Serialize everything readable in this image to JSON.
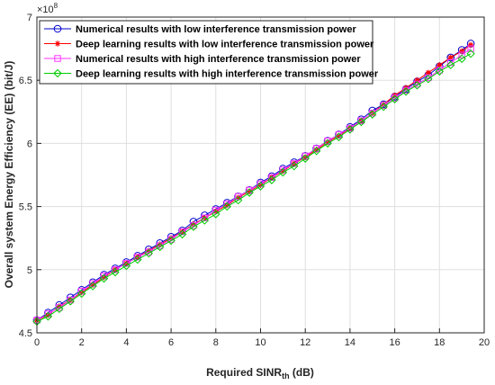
{
  "chart_data": {
    "type": "line",
    "title": "",
    "xlabel_main": "Required SINR",
    "xlabel_sub": "th",
    "xlabel_unit": " (dB)",
    "ylabel": "Overall system Energy Efficiency (EE) (bit/J)",
    "exponent_base": "×10",
    "exponent_power": "8",
    "scale": 100000000,
    "xlim": [
      0,
      20
    ],
    "ylim": [
      4.5,
      7.0
    ],
    "xticks": [
      0,
      2,
      4,
      6,
      8,
      10,
      12,
      14,
      16,
      18,
      20
    ],
    "yticks": [
      4.5,
      5,
      5.5,
      6,
      6.5,
      7
    ],
    "grid": true,
    "legend_position": "top-left",
    "series": [
      {
        "name": "Numerical results with low interference transmission power",
        "color": "#0000cc",
        "marker": "circle",
        "x": [
          0,
          0.5,
          1,
          1.5,
          2,
          2.5,
          3,
          3.5,
          4,
          4.5,
          5,
          5.5,
          6,
          6.5,
          7,
          7.5,
          8,
          8.5,
          9,
          9.5,
          10,
          10.5,
          11,
          11.5,
          12,
          12.5,
          13,
          13.5,
          14,
          14.5,
          15,
          15.5,
          16,
          16.5,
          17,
          17.5,
          18,
          18.5,
          19,
          19.4
        ],
        "values": [
          4.6,
          4.66,
          4.72,
          4.78,
          4.84,
          4.9,
          4.96,
          5.01,
          5.06,
          5.11,
          5.16,
          5.21,
          5.26,
          5.31,
          5.38,
          5.43,
          5.48,
          5.53,
          5.58,
          5.63,
          5.69,
          5.74,
          5.8,
          5.85,
          5.9,
          5.96,
          6.02,
          6.07,
          6.13,
          6.19,
          6.26,
          6.31,
          6.37,
          6.43,
          6.49,
          6.54,
          6.61,
          6.68,
          6.74,
          6.79
        ]
      },
      {
        "name": "Deep learning results with low interference transmission power",
        "color": "#ff0000",
        "marker": "asterisk",
        "x": [
          0,
          0.5,
          1,
          1.5,
          2,
          2.5,
          3,
          3.5,
          4,
          4.5,
          5,
          5.5,
          6,
          6.5,
          7,
          7.5,
          8,
          8.5,
          9,
          9.5,
          10,
          10.5,
          11,
          11.5,
          12,
          12.5,
          13,
          13.5,
          14,
          14.5,
          15,
          15.5,
          16,
          16.5,
          17,
          17.5,
          18,
          18.5,
          19,
          19.4
        ],
        "values": [
          4.6,
          4.64,
          4.71,
          4.76,
          4.82,
          4.88,
          4.94,
          5.0,
          5.05,
          5.1,
          5.15,
          5.2,
          5.25,
          5.3,
          5.36,
          5.41,
          5.46,
          5.51,
          5.57,
          5.62,
          5.67,
          5.73,
          5.78,
          5.84,
          5.89,
          5.95,
          6.01,
          6.06,
          6.12,
          6.18,
          6.24,
          6.31,
          6.38,
          6.44,
          6.5,
          6.56,
          6.62,
          6.68,
          6.73,
          6.78
        ]
      },
      {
        "name": "Numerical results with high interference transmission power",
        "color": "#ff33ff",
        "marker": "square",
        "x": [
          0,
          0.5,
          1,
          1.5,
          2,
          2.5,
          3,
          3.5,
          4,
          4.5,
          5,
          5.5,
          6,
          6.5,
          7,
          7.5,
          8,
          8.5,
          9,
          9.5,
          10,
          10.5,
          11,
          11.5,
          12,
          12.5,
          13,
          13.5,
          14,
          14.5,
          15,
          15.5,
          16,
          16.5,
          17,
          17.5,
          18,
          18.5,
          19,
          19.4
        ],
        "values": [
          4.6,
          4.65,
          4.7,
          4.76,
          4.83,
          4.89,
          4.95,
          5.0,
          5.05,
          5.1,
          5.14,
          5.19,
          5.24,
          5.3,
          5.35,
          5.41,
          5.47,
          5.52,
          5.58,
          5.63,
          5.68,
          5.73,
          5.79,
          5.84,
          5.9,
          5.96,
          6.02,
          6.07,
          6.12,
          6.18,
          6.24,
          6.3,
          6.36,
          6.42,
          6.47,
          6.52,
          6.58,
          6.64,
          6.7,
          6.75
        ]
      },
      {
        "name": "Deep learning results with high interference transmission power",
        "color": "#00cc00",
        "marker": "diamond",
        "x": [
          0,
          0.5,
          1,
          1.5,
          2,
          2.5,
          3,
          3.5,
          4,
          4.5,
          5,
          5.5,
          6,
          6.5,
          7,
          7.5,
          8,
          8.5,
          9,
          9.5,
          10,
          10.5,
          11,
          11.5,
          12,
          12.5,
          13,
          13.5,
          14,
          14.5,
          15,
          15.5,
          16,
          16.5,
          17,
          17.5,
          18,
          18.5,
          19,
          19.4
        ],
        "values": [
          4.59,
          4.63,
          4.69,
          4.75,
          4.81,
          4.87,
          4.93,
          4.98,
          5.03,
          5.08,
          5.13,
          5.18,
          5.23,
          5.28,
          5.34,
          5.39,
          5.44,
          5.5,
          5.55,
          5.61,
          5.66,
          5.71,
          5.77,
          5.82,
          5.88,
          5.94,
          6.0,
          6.05,
          6.11,
          6.17,
          6.23,
          6.29,
          6.35,
          6.41,
          6.46,
          6.51,
          6.57,
          6.62,
          6.67,
          6.71
        ]
      }
    ]
  }
}
